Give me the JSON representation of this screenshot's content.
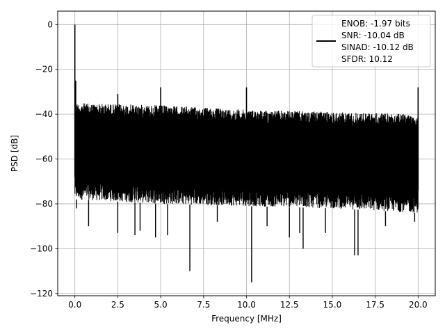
{
  "chart_data": {
    "type": "line",
    "title": "",
    "xlabel": "Frequency [MHz]",
    "ylabel": "PSD [dB]",
    "xlim": [
      -1.0,
      21.0
    ],
    "ylim": [
      -121,
      6
    ],
    "x_ticks": [
      0.0,
      2.5,
      5.0,
      7.5,
      10.0,
      12.5,
      15.0,
      17.5,
      20.0
    ],
    "x_tick_labels": [
      "0.0",
      "2.5",
      "5.0",
      "7.5",
      "10.0",
      "12.5",
      "15.0",
      "17.5",
      "20.0"
    ],
    "y_ticks": [
      0,
      -20,
      -40,
      -60,
      -80,
      -100,
      -120
    ],
    "y_tick_labels": [
      "0",
      "−20",
      "−40",
      "−60",
      "−80",
      "−100",
      "−120"
    ],
    "grid": true,
    "series_color": "#000000",
    "x_range": [
      0.0,
      20.0
    ],
    "noise_band": {
      "x": [
        0.0,
        5.0,
        10.0,
        15.0,
        20.0
      ],
      "upper": [
        -35,
        -36,
        -38,
        -39,
        -40
      ],
      "lower": [
        -78,
        -80,
        -81,
        -82,
        -84
      ]
    },
    "spikes": [
      {
        "x": 0.0,
        "y": 0
      },
      {
        "x": 0.05,
        "y": -25
      },
      {
        "x": 2.5,
        "y": -31
      },
      {
        "x": 5.0,
        "y": -28
      },
      {
        "x": 10.0,
        "y": -28
      },
      {
        "x": 20.0,
        "y": -28
      }
    ],
    "dips": [
      {
        "x": 0.1,
        "y": -82
      },
      {
        "x": 0.8,
        "y": -90
      },
      {
        "x": 2.5,
        "y": -93
      },
      {
        "x": 3.5,
        "y": -94
      },
      {
        "x": 3.8,
        "y": -92
      },
      {
        "x": 4.7,
        "y": -95
      },
      {
        "x": 5.4,
        "y": -94
      },
      {
        "x": 6.7,
        "y": -110
      },
      {
        "x": 8.3,
        "y": -88
      },
      {
        "x": 10.3,
        "y": -115
      },
      {
        "x": 11.2,
        "y": -90
      },
      {
        "x": 12.5,
        "y": -95
      },
      {
        "x": 13.1,
        "y": -93
      },
      {
        "x": 13.3,
        "y": -100
      },
      {
        "x": 14.6,
        "y": -93
      },
      {
        "x": 16.3,
        "y": -103
      },
      {
        "x": 16.5,
        "y": -103
      },
      {
        "x": 18.1,
        "y": -90
      },
      {
        "x": 19.8,
        "y": -88
      }
    ],
    "legend": {
      "placement": "top-right",
      "entries": [
        "ENOB: -1.97 bits",
        "SNR: -10.04 dB",
        "SINAD: -10.12 dB",
        "SFDR: 10.12"
      ]
    }
  }
}
